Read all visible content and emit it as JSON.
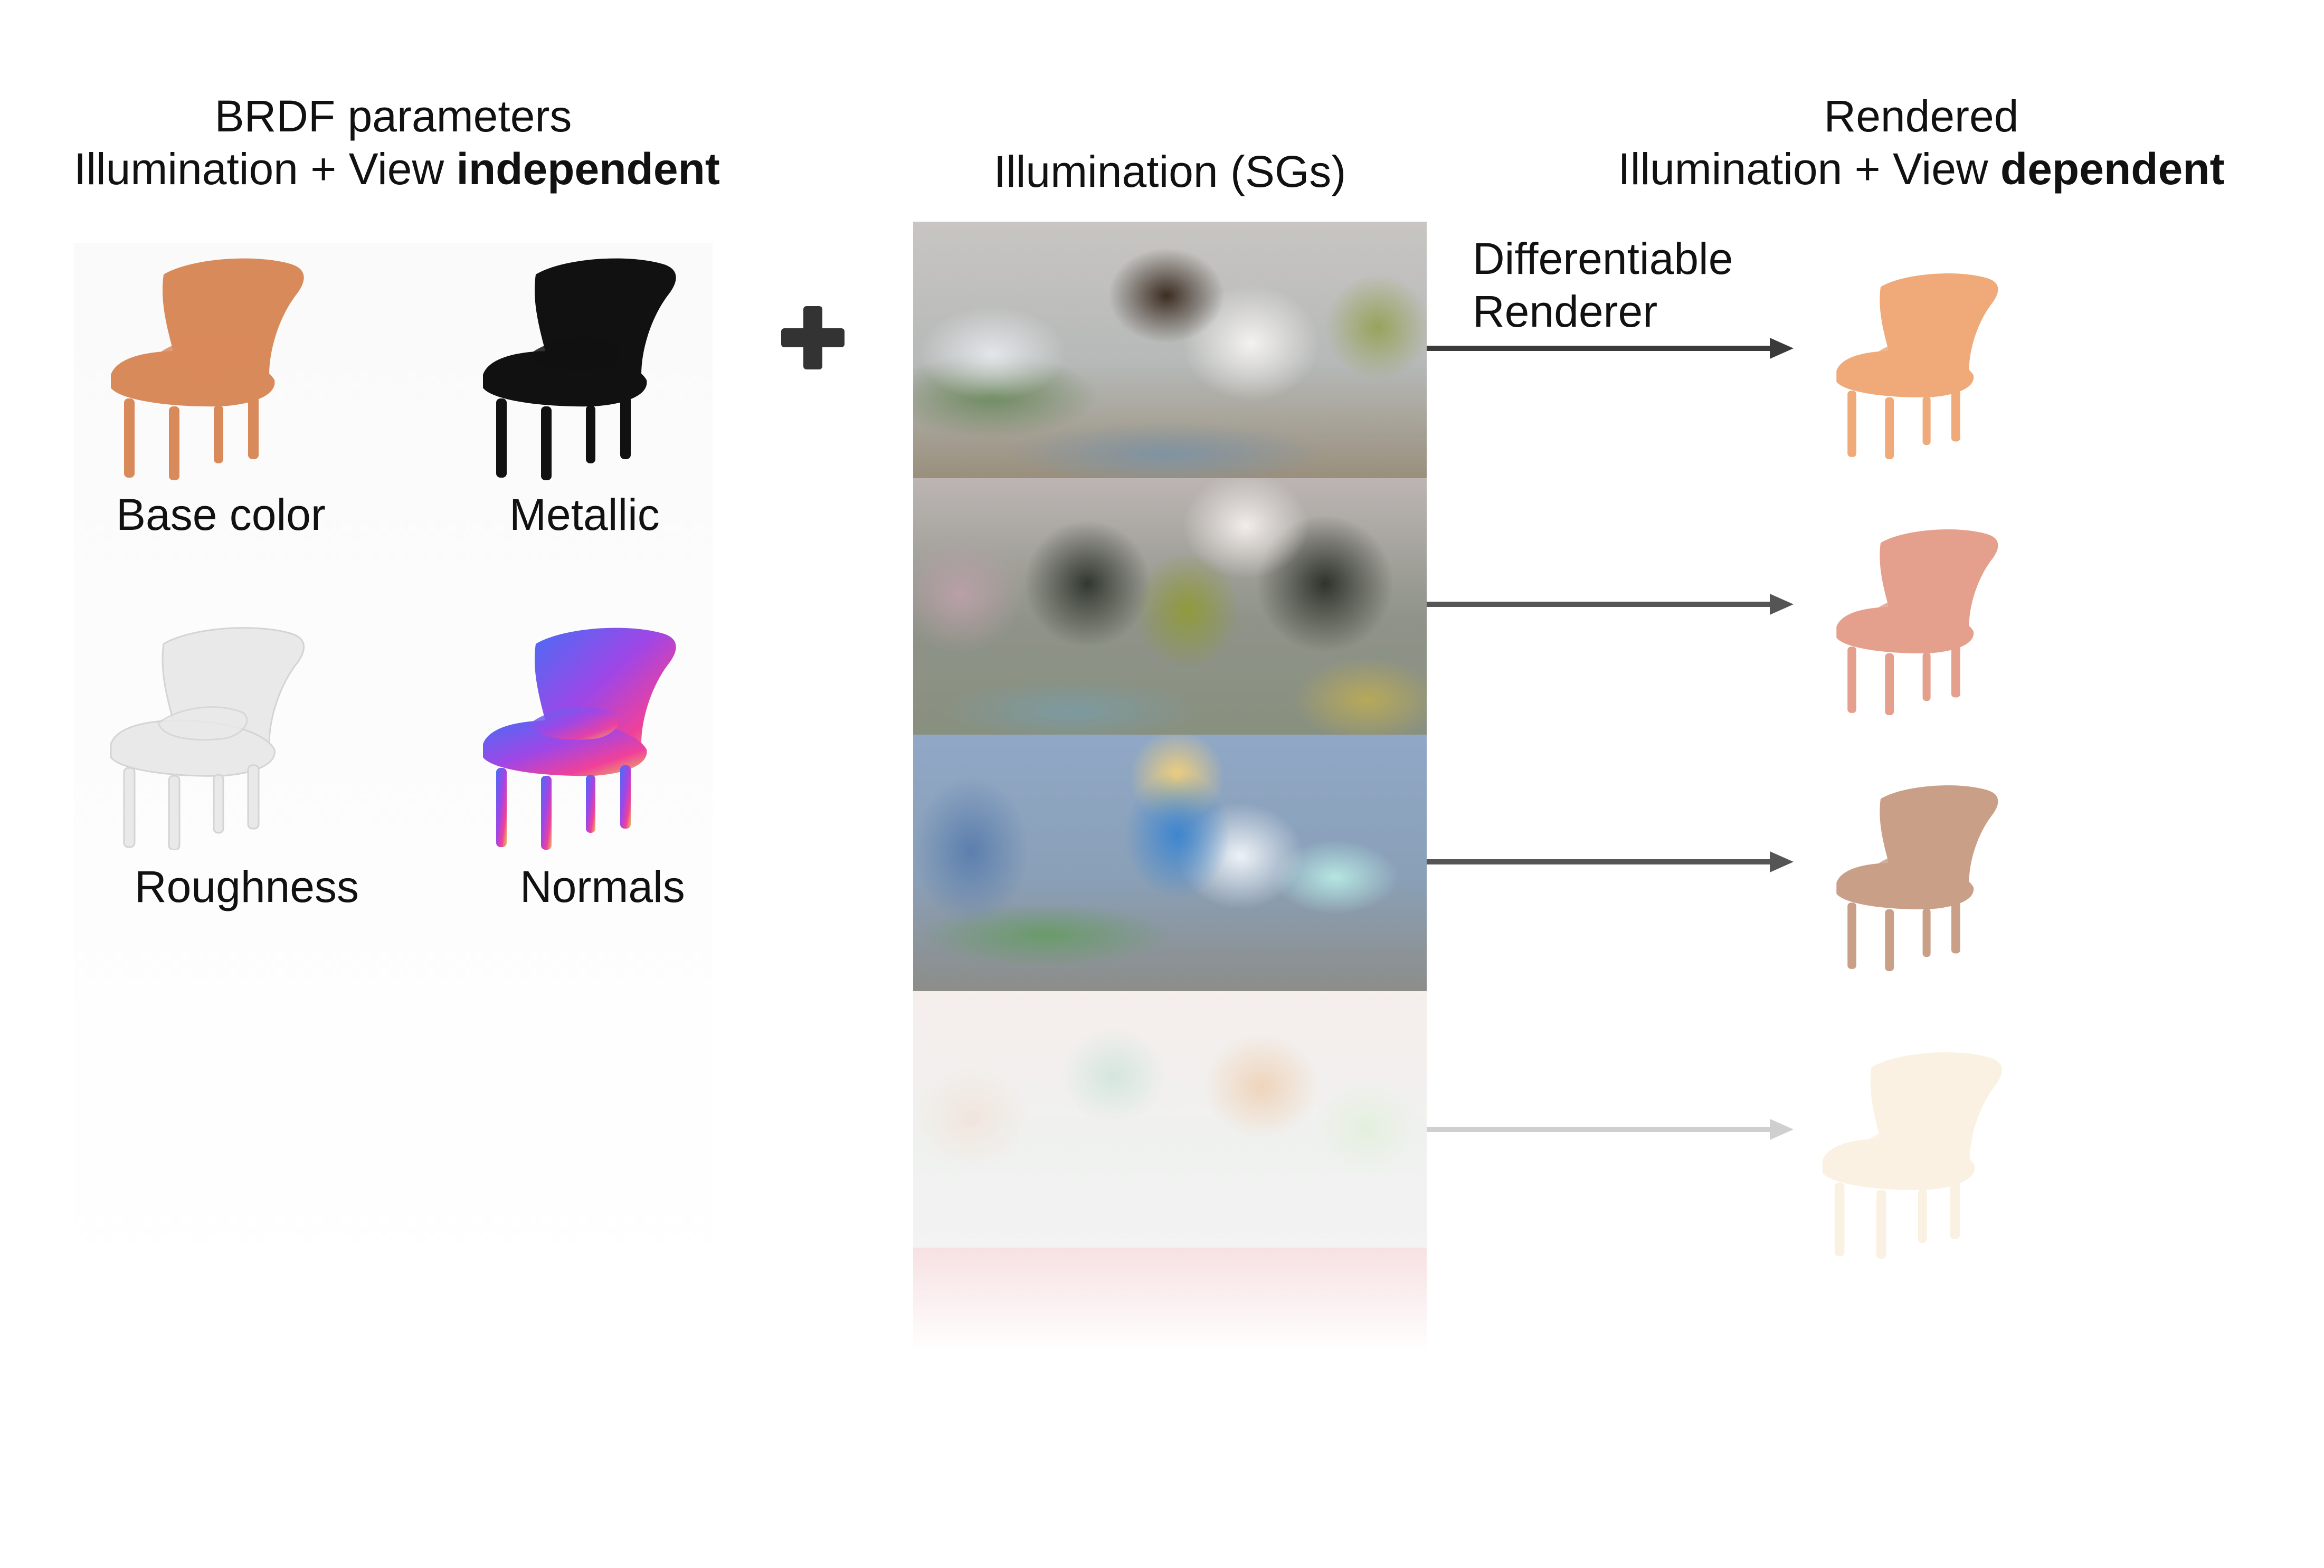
{
  "headers": {
    "brdf_line1": "BRDF parameters",
    "brdf_line2_plain": "Illumination + View ",
    "brdf_line2_bold": "independent",
    "illumination": "Illumination (SGs)",
    "rendered_line1": "Rendered",
    "rendered_line2_plain": "Illumination + View ",
    "rendered_line2_bold": "dependent"
  },
  "brdf_maps": [
    {
      "label": "Base color",
      "tint": "#d98a5a"
    },
    {
      "label": "Metallic",
      "tint": "#111111"
    },
    {
      "label": "Roughness",
      "tint": "#e6e6e6"
    },
    {
      "label": "Normals",
      "tint": "#7a5cf0"
    }
  ],
  "renderer_label_line1": "Differentiable",
  "renderer_label_line2": "Renderer",
  "plus_symbol": "plus-icon",
  "illuminations": [
    {
      "base": "#b9c2c6",
      "opacity": 1.0
    },
    {
      "base": "#8d9287",
      "opacity": 1.0
    },
    {
      "base": "#8fa3bb",
      "opacity": 1.0
    },
    {
      "base": "#eeecea",
      "opacity": 0.6
    }
  ],
  "renders": [
    {
      "tint": "#f0a978",
      "opacity": 1.0
    },
    {
      "tint": "#e4a08c",
      "opacity": 1.0
    },
    {
      "tint": "#c99f88",
      "opacity": 1.0
    },
    {
      "tint": "#f7e6cc",
      "opacity": 0.55
    }
  ],
  "colors": {
    "arrow": "#3a3a3a",
    "arrow_faded": "#cfcfcf",
    "plus": "#333333"
  }
}
